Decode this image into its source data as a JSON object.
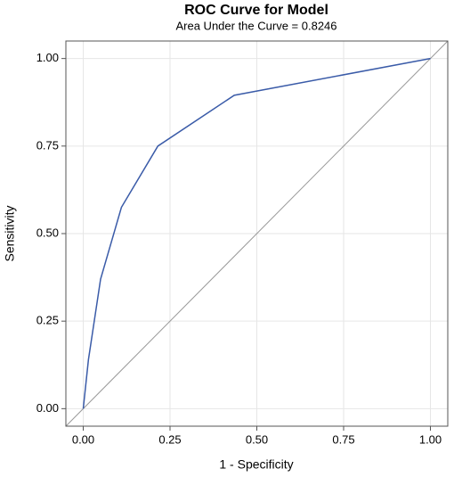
{
  "chart_data": {
    "type": "line",
    "title": "ROC Curve for Model",
    "subtitle": "Area Under the Curve = 0.8246",
    "x_label": "1 - Specificity",
    "y_label": "Sensitivity",
    "x": [
      0,
      0.015,
      0.05,
      0.11,
      0.215,
      0.435,
      1
    ],
    "series": [
      {
        "color": "#3a5ba8",
        "values": [
          0,
          0.14,
          0.37,
          0.575,
          0.75,
          0.895,
          1
        ]
      }
    ],
    "xlim": [
      -0.05,
      1.05
    ],
    "ylim": [
      -0.05,
      1.05
    ],
    "xticks": [
      {
        "value": 0,
        "label": "0.00"
      },
      {
        "value": 0.25,
        "label": "0.25"
      },
      {
        "value": 0.5,
        "label": "0.50"
      },
      {
        "value": 0.75,
        "label": "0.75"
      },
      {
        "value": 1,
        "label": "1.00"
      }
    ],
    "yticks": [
      {
        "value": 0,
        "label": "0.00"
      },
      {
        "value": 0.25,
        "label": "0.25"
      },
      {
        "value": 0.5,
        "label": "0.50"
      },
      {
        "value": 0.75,
        "label": "0.75"
      },
      {
        "value": 1,
        "label": "1.00"
      }
    ],
    "grid": true
  }
}
